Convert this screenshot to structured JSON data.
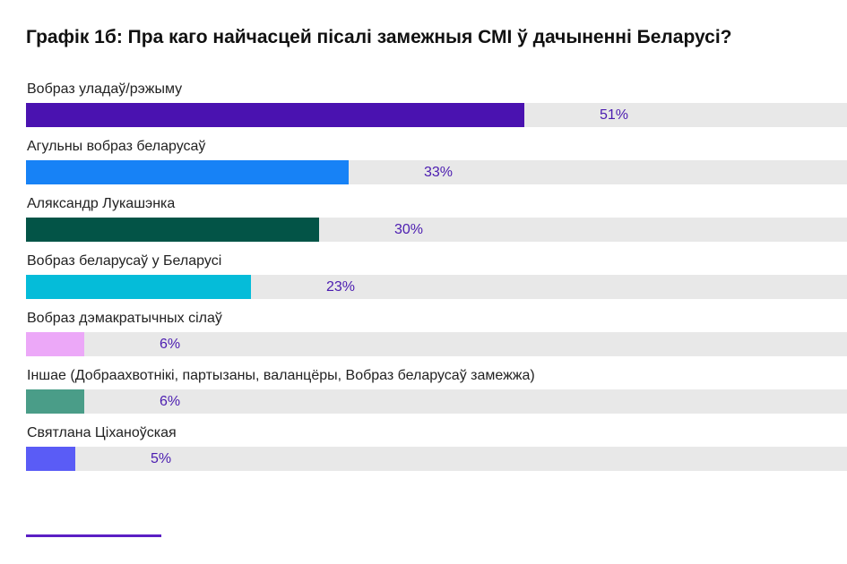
{
  "chart_data": {
    "type": "bar",
    "orientation": "horizontal",
    "title": "Графік 1б: Пра каго найчасцей пісалі замежныя СМІ ў дачыненні Беларусі?",
    "xlim": [
      0,
      84
    ],
    "value_format": "percent",
    "categories": [
      "Вобраз уладаў/рэжыму",
      "Агульны вобраз беларусаў",
      "Аляксандр Лукашэнка",
      "Вобраз беларусаў у Беларусі",
      "Вобраз дэмакратычных сілаў",
      "Іншае (Добраахвотнікі, партызаны, валанцёры, Вобраз беларусаў замежжа)",
      "Святлана Ціханоўская"
    ],
    "values": [
      51,
      33,
      30,
      23,
      6,
      6,
      5
    ],
    "value_labels": [
      "51%",
      "33%",
      "30%",
      "23%",
      "6%",
      "6%",
      "5%"
    ],
    "colors": [
      "#4a12b0",
      "#1782f6",
      "#035447",
      "#05bcd9",
      "#eca8f8",
      "#4a9d88",
      "#5a5cf6"
    ],
    "track_color": "#e8e8e8",
    "label_color": "#4b1cb0",
    "grid": false,
    "legend": "none"
  },
  "footer": {
    "accent_color": "#5b1fc4"
  }
}
